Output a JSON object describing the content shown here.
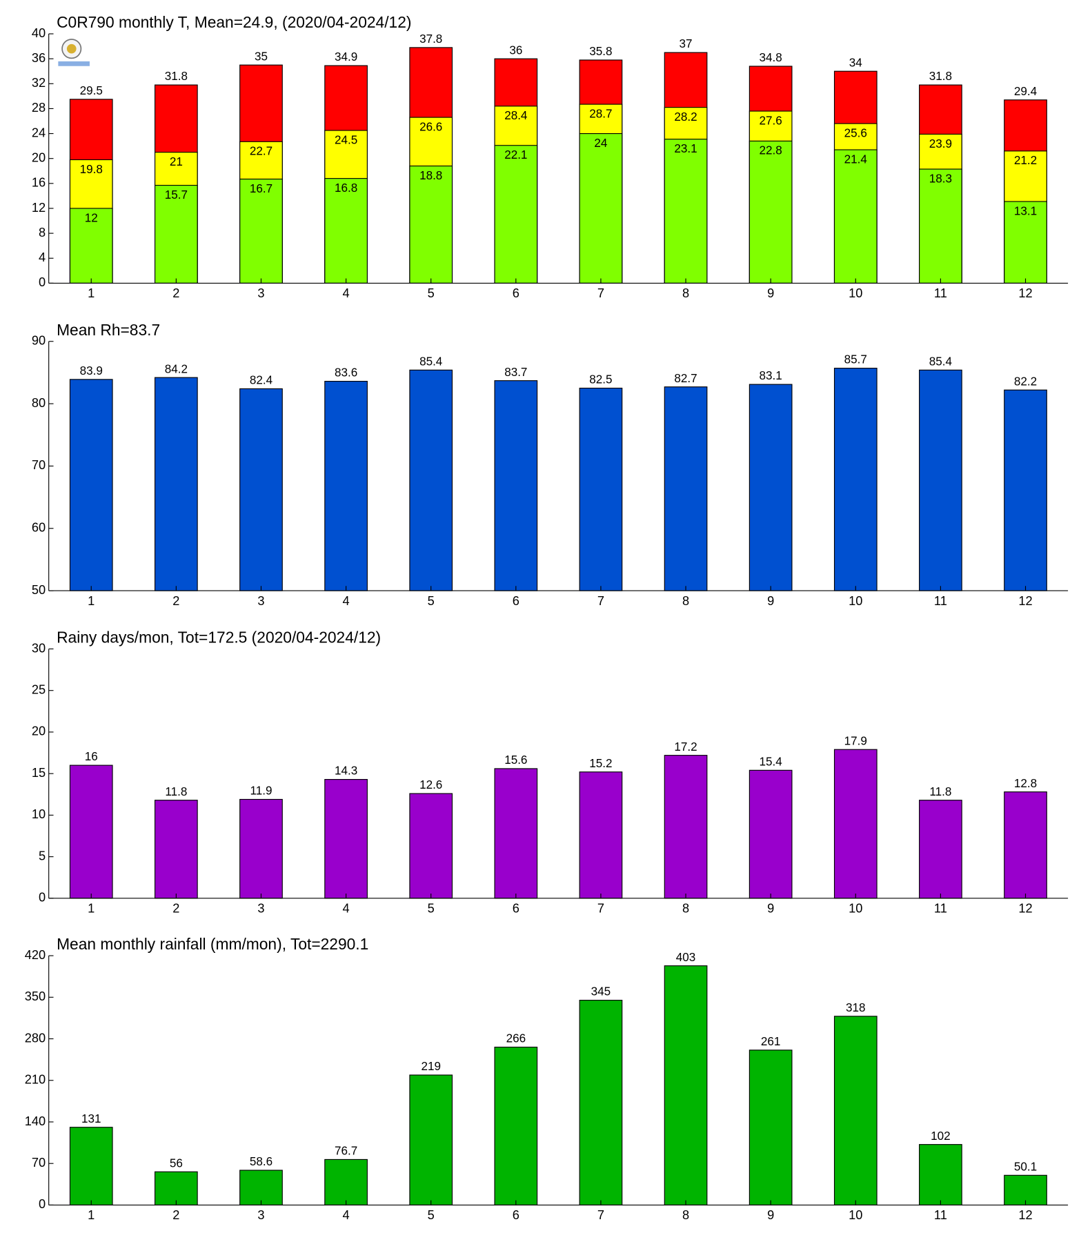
{
  "chart_data": [
    {
      "type": "bar",
      "title": "C0R790 monthly T, Mean=24.9, (2020/04-2024/12)",
      "categories": [
        "1",
        "2",
        "3",
        "4",
        "5",
        "6",
        "7",
        "8",
        "9",
        "10",
        "11",
        "12"
      ],
      "series": [
        {
          "color": "#ff0000",
          "values": [
            29.5,
            31.8,
            35,
            34.9,
            37.8,
            36,
            35.8,
            37,
            34.8,
            34,
            31.8,
            29.4
          ]
        },
        {
          "color": "#ffff00",
          "values": [
            19.8,
            21,
            22.7,
            24.5,
            26.6,
            28.4,
            28.7,
            28.2,
            27.6,
            25.6,
            23.9,
            21.2
          ]
        },
        {
          "color": "#80ff00",
          "values": [
            12,
            15.7,
            16.7,
            16.8,
            18.8,
            22.1,
            24,
            23.1,
            22.8,
            21.4,
            18.3,
            13.1
          ]
        }
      ],
      "ylim": [
        0,
        40
      ],
      "yticks": [
        0,
        4,
        8,
        12,
        16,
        20,
        24,
        28,
        32,
        36,
        40
      ]
    },
    {
      "type": "bar",
      "title": "Mean Rh=83.7",
      "categories": [
        "1",
        "2",
        "3",
        "4",
        "5",
        "6",
        "7",
        "8",
        "9",
        "10",
        "11",
        "12"
      ],
      "series": [
        {
          "color": "#0050d0",
          "values": [
            83.9,
            84.2,
            82.4,
            83.6,
            85.4,
            83.7,
            82.5,
            82.7,
            83.1,
            85.7,
            85.4,
            82.2
          ]
        }
      ],
      "ylim": [
        50,
        90
      ],
      "yticks": [
        50,
        60,
        70,
        80,
        90
      ]
    },
    {
      "type": "bar",
      "title": "Rainy days/mon, Tot=172.5 (2020/04-2024/12)",
      "categories": [
        "1",
        "2",
        "3",
        "4",
        "5",
        "6",
        "7",
        "8",
        "9",
        "10",
        "11",
        "12"
      ],
      "series": [
        {
          "color": "#9900cc",
          "values": [
            16,
            11.8,
            11.9,
            14.3,
            12.6,
            15.6,
            15.2,
            17.2,
            15.4,
            17.9,
            11.8,
            12.8
          ]
        }
      ],
      "ylim": [
        0,
        30
      ],
      "yticks": [
        0,
        5,
        10,
        15,
        20,
        25,
        30
      ]
    },
    {
      "type": "bar",
      "title": "Mean monthly rainfall (mm/mon), Tot=2290.1",
      "categories": [
        "1",
        "2",
        "3",
        "4",
        "5",
        "6",
        "7",
        "8",
        "9",
        "10",
        "11",
        "12"
      ],
      "series": [
        {
          "color": "#00b400",
          "values": [
            131,
            56,
            58.6,
            76.7,
            219,
            266,
            345,
            403,
            261,
            318,
            102,
            50.1
          ]
        }
      ],
      "ylim": [
        0,
        420
      ],
      "yticks": [
        0,
        70,
        140,
        210,
        280,
        350,
        420
      ]
    }
  ]
}
